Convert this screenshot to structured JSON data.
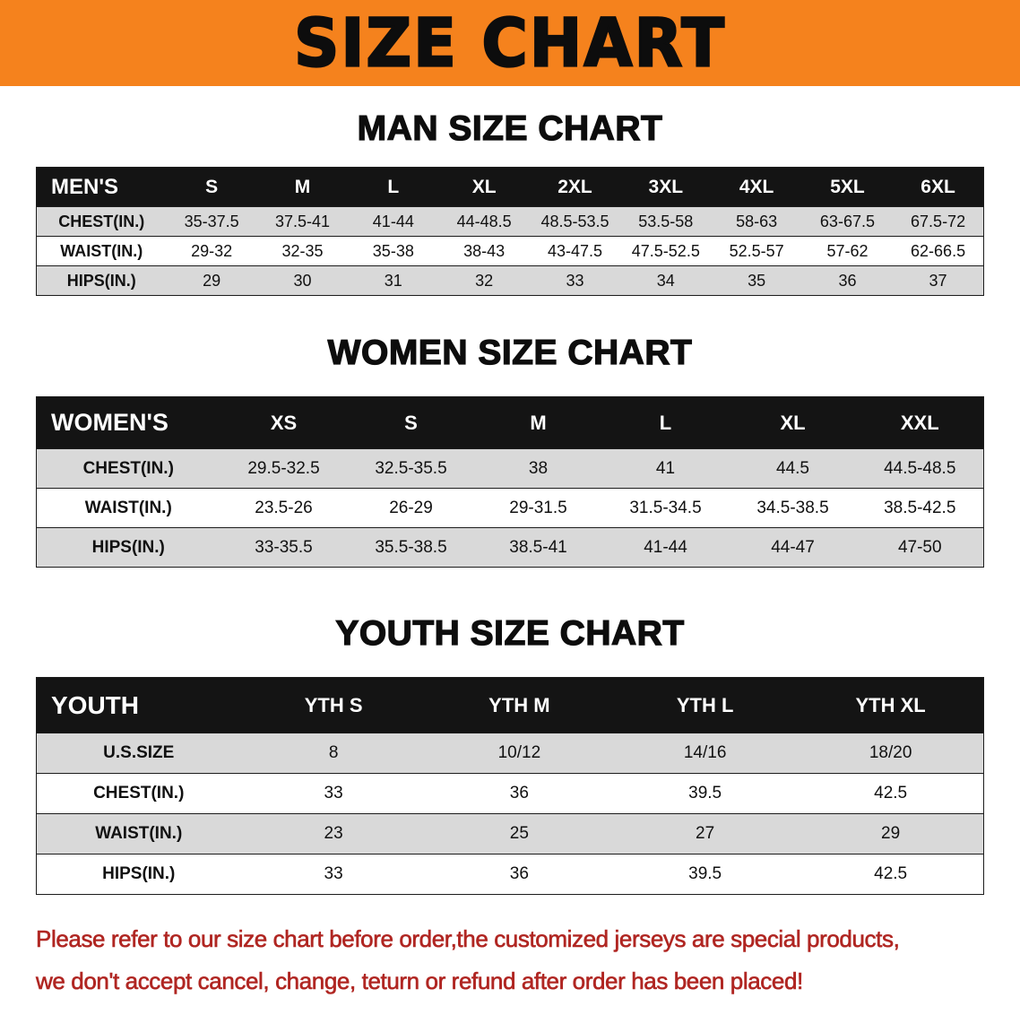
{
  "banner": {
    "title": "SIZE CHART"
  },
  "colors": {
    "banner_bg": "#F5821D",
    "table_header_bg": "#141414",
    "row_alt_gray": "#D9D9D9",
    "note_red": "#B02622",
    "text_black": "#0D0D0D"
  },
  "sections": [
    {
      "heading": "MAN SIZE CHART",
      "table": {
        "header": [
          "MEN'S",
          "S",
          "M",
          "L",
          "XL",
          "2XL",
          "3XL",
          "4XL",
          "5XL",
          "6XL"
        ],
        "rows": [
          [
            "CHEST(IN.)",
            "35-37.5",
            "37.5-41",
            "41-44",
            "44-48.5",
            "48.5-53.5",
            "53.5-58",
            "58-63",
            "63-67.5",
            "67.5-72"
          ],
          [
            "WAIST(IN.)",
            "29-32",
            "32-35",
            "35-38",
            "38-43",
            "43-47.5",
            "47.5-52.5",
            "52.5-57",
            "57-62",
            "62-66.5"
          ],
          [
            "HIPS(IN.)",
            "29",
            "30",
            "31",
            "32",
            "33",
            "34",
            "35",
            "36",
            "37"
          ]
        ]
      }
    },
    {
      "heading": "WOMEN SIZE CHART",
      "table": {
        "header": [
          "WOMEN'S",
          "XS",
          "S",
          "M",
          "L",
          "XL",
          "XXL"
        ],
        "rows": [
          [
            "CHEST(IN.)",
            "29.5-32.5",
            "32.5-35.5",
            "38",
            "41",
            "44.5",
            "44.5-48.5"
          ],
          [
            "WAIST(IN.)",
            "23.5-26",
            "26-29",
            "29-31.5",
            "31.5-34.5",
            "34.5-38.5",
            "38.5-42.5"
          ],
          [
            "HIPS(IN.)",
            "33-35.5",
            "35.5-38.5",
            "38.5-41",
            "41-44",
            "44-47",
            "47-50"
          ]
        ]
      }
    },
    {
      "heading": "YOUTH SIZE CHART",
      "table": {
        "header": [
          "YOUTH",
          "YTH S",
          "YTH M",
          "YTH L",
          "YTH XL"
        ],
        "rows": [
          [
            "U.S.SIZE",
            "8",
            "10/12",
            "14/16",
            "18/20"
          ],
          [
            "CHEST(IN.)",
            "33",
            "36",
            "39.5",
            "42.5"
          ],
          [
            "WAIST(IN.)",
            "23",
            "25",
            "27",
            "29"
          ],
          [
            "HIPS(IN.)",
            "33",
            "36",
            "39.5",
            "42.5"
          ]
        ]
      }
    }
  ],
  "note": {
    "line1": "Please refer to our size chart before order,the customized jerseys are special products,",
    "line2": "we don't accept cancel, change, teturn or refund after order has been placed!"
  }
}
